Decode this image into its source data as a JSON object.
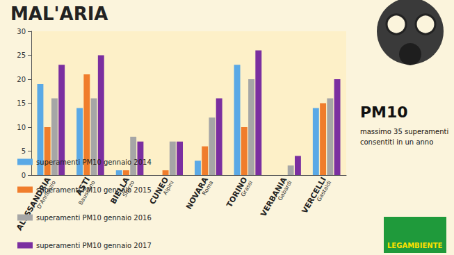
{
  "chart_data": {
    "type": "bar",
    "title": "MAL'ARIA",
    "categories": [
      "ALESSANDRIA\nD'Annunzio",
      "ASTI\nBaussano",
      "BIELLA\nSturzo",
      "CUNEO\nAlpini",
      "NOVARA\nRoma",
      "TORINO\nGrassi",
      "VERBANIA\nGabardi",
      "VERCELLI\nGastaldi"
    ],
    "series": [
      {
        "name": "superamenti PM10 gennaio 2014",
        "color": "#5aa9e6",
        "values": [
          19,
          14,
          1,
          0,
          3,
          23,
          0,
          14
        ]
      },
      {
        "name": "superamenti PM10 gennaio 2015",
        "color": "#f07d2c",
        "values": [
          10,
          21,
          1,
          1,
          6,
          10,
          0,
          15
        ]
      },
      {
        "name": "superamenti PM10 gennaio 2016",
        "color": "#a6a6a6",
        "values": [
          16,
          16,
          8,
          7,
          12,
          20,
          2,
          16
        ]
      },
      {
        "name": "superamenti PM10 gennaio 2017",
        "color": "#7b2fa0",
        "values": [
          23,
          25,
          7,
          7,
          16,
          26,
          4,
          20
        ]
      }
    ],
    "ylim": [
      0,
      30
    ],
    "yticks": [
      0,
      5,
      10,
      15,
      20,
      25,
      30
    ],
    "grid": false,
    "legend": "bottom-left",
    "annotations": [
      "PM10",
      "massimo 35 superamenti\nconsentiti in un anno",
      "LEGAMBIENTE"
    ]
  }
}
